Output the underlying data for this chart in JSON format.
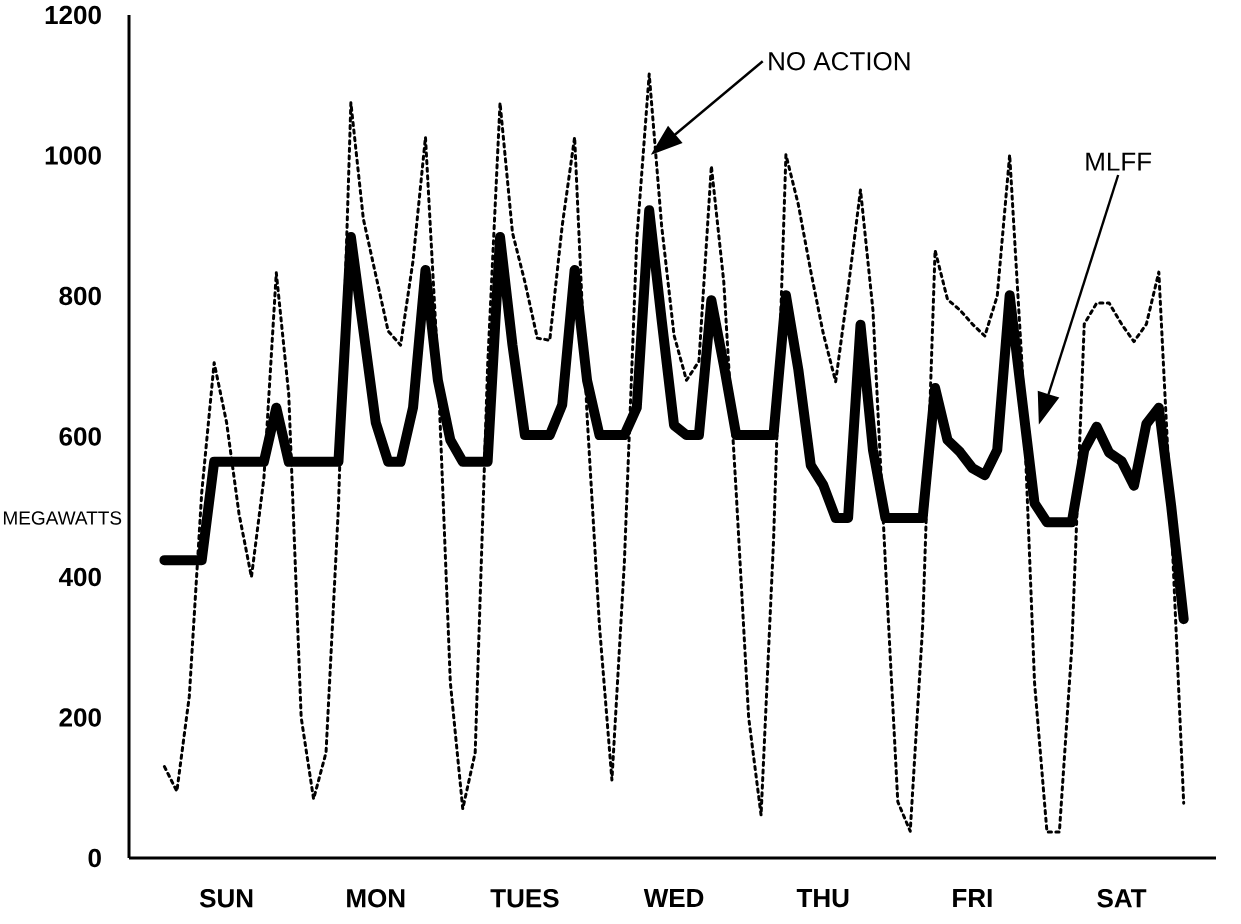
{
  "chart_data": {
    "type": "line",
    "ylabel": "MEGAWATTS",
    "ylim": [
      0,
      1200
    ],
    "categories": [
      null,
      null,
      null,
      null,
      null,
      null,
      "SUN",
      null,
      null,
      null,
      null,
      null,
      null,
      null,
      null,
      null,
      null,
      null,
      "MON",
      null,
      null,
      null,
      null,
      null,
      null,
      null,
      null,
      null,
      null,
      null,
      "TUES",
      null,
      null,
      null,
      null,
      null,
      null,
      null,
      null,
      null,
      null,
      null,
      "WED",
      null,
      null,
      null,
      null,
      null,
      null,
      null,
      null,
      null,
      null,
      null,
      "THU",
      null,
      null,
      null,
      null,
      null,
      null,
      null,
      null,
      null,
      null,
      null,
      "FRI",
      null,
      null,
      null,
      null,
      null,
      null,
      null,
      null,
      null,
      null,
      null,
      "SAT",
      null,
      null,
      null,
      null,
      null,
      null
    ],
    "yticks": [
      0,
      200,
      400,
      600,
      800,
      1000,
      1200
    ],
    "annotations": [
      "NO ACTION",
      "MLFF"
    ],
    "series": [
      {
        "color": "#000000",
        "line_style": "dotted",
        "values": [
          null,
          130,
          95,
          230,
          520,
          705,
          620,
          490,
          400,
          540,
          833,
          660,
          200,
          84,
          150,
          500,
          1075,
          910,
          830,
          750,
          730,
          850,
          1026,
          700,
          250,
          70,
          150,
          700,
          1075,
          890,
          820,
          740,
          737,
          900,
          1026,
          630,
          330,
          111,
          420,
          880,
          1116,
          900,
          744,
          680,
          707,
          985,
          820,
          520,
          200,
          61,
          450,
          1001,
          930,
          835,
          747,
          678,
          810,
          951,
          780,
          420,
          80,
          38,
          330,
          865,
          795,
          780,
          760,
          743,
          800,
          1001,
          700,
          250,
          37,
          37,
          300,
          760,
          790,
          790,
          760,
          735,
          760,
          834,
          480,
          78,
          null
        ]
      },
      {
        "color": "#000000",
        "line_style": "solid",
        "values": [
          null,
          424,
          424,
          424,
          424,
          564,
          564,
          564,
          564,
          564,
          641,
          564,
          564,
          564,
          564,
          564,
          884,
          752,
          620,
          564,
          564,
          641,
          837,
          680,
          595,
          564,
          564,
          564,
          884,
          730,
          602,
          602,
          602,
          645,
          837,
          680,
          602,
          602,
          602,
          641,
          922,
          766,
          616,
          602,
          602,
          794,
          702,
          602,
          602,
          602,
          602,
          801,
          695,
          559,
          531,
          484,
          484,
          759,
          581,
          484,
          484,
          484,
          484,
          669,
          595,
          578,
          555,
          545,
          581,
          801,
          652,
          505,
          478,
          478,
          478,
          581,
          614,
          577,
          565,
          530,
          618,
          641,
          500,
          340,
          null
        ]
      }
    ]
  }
}
